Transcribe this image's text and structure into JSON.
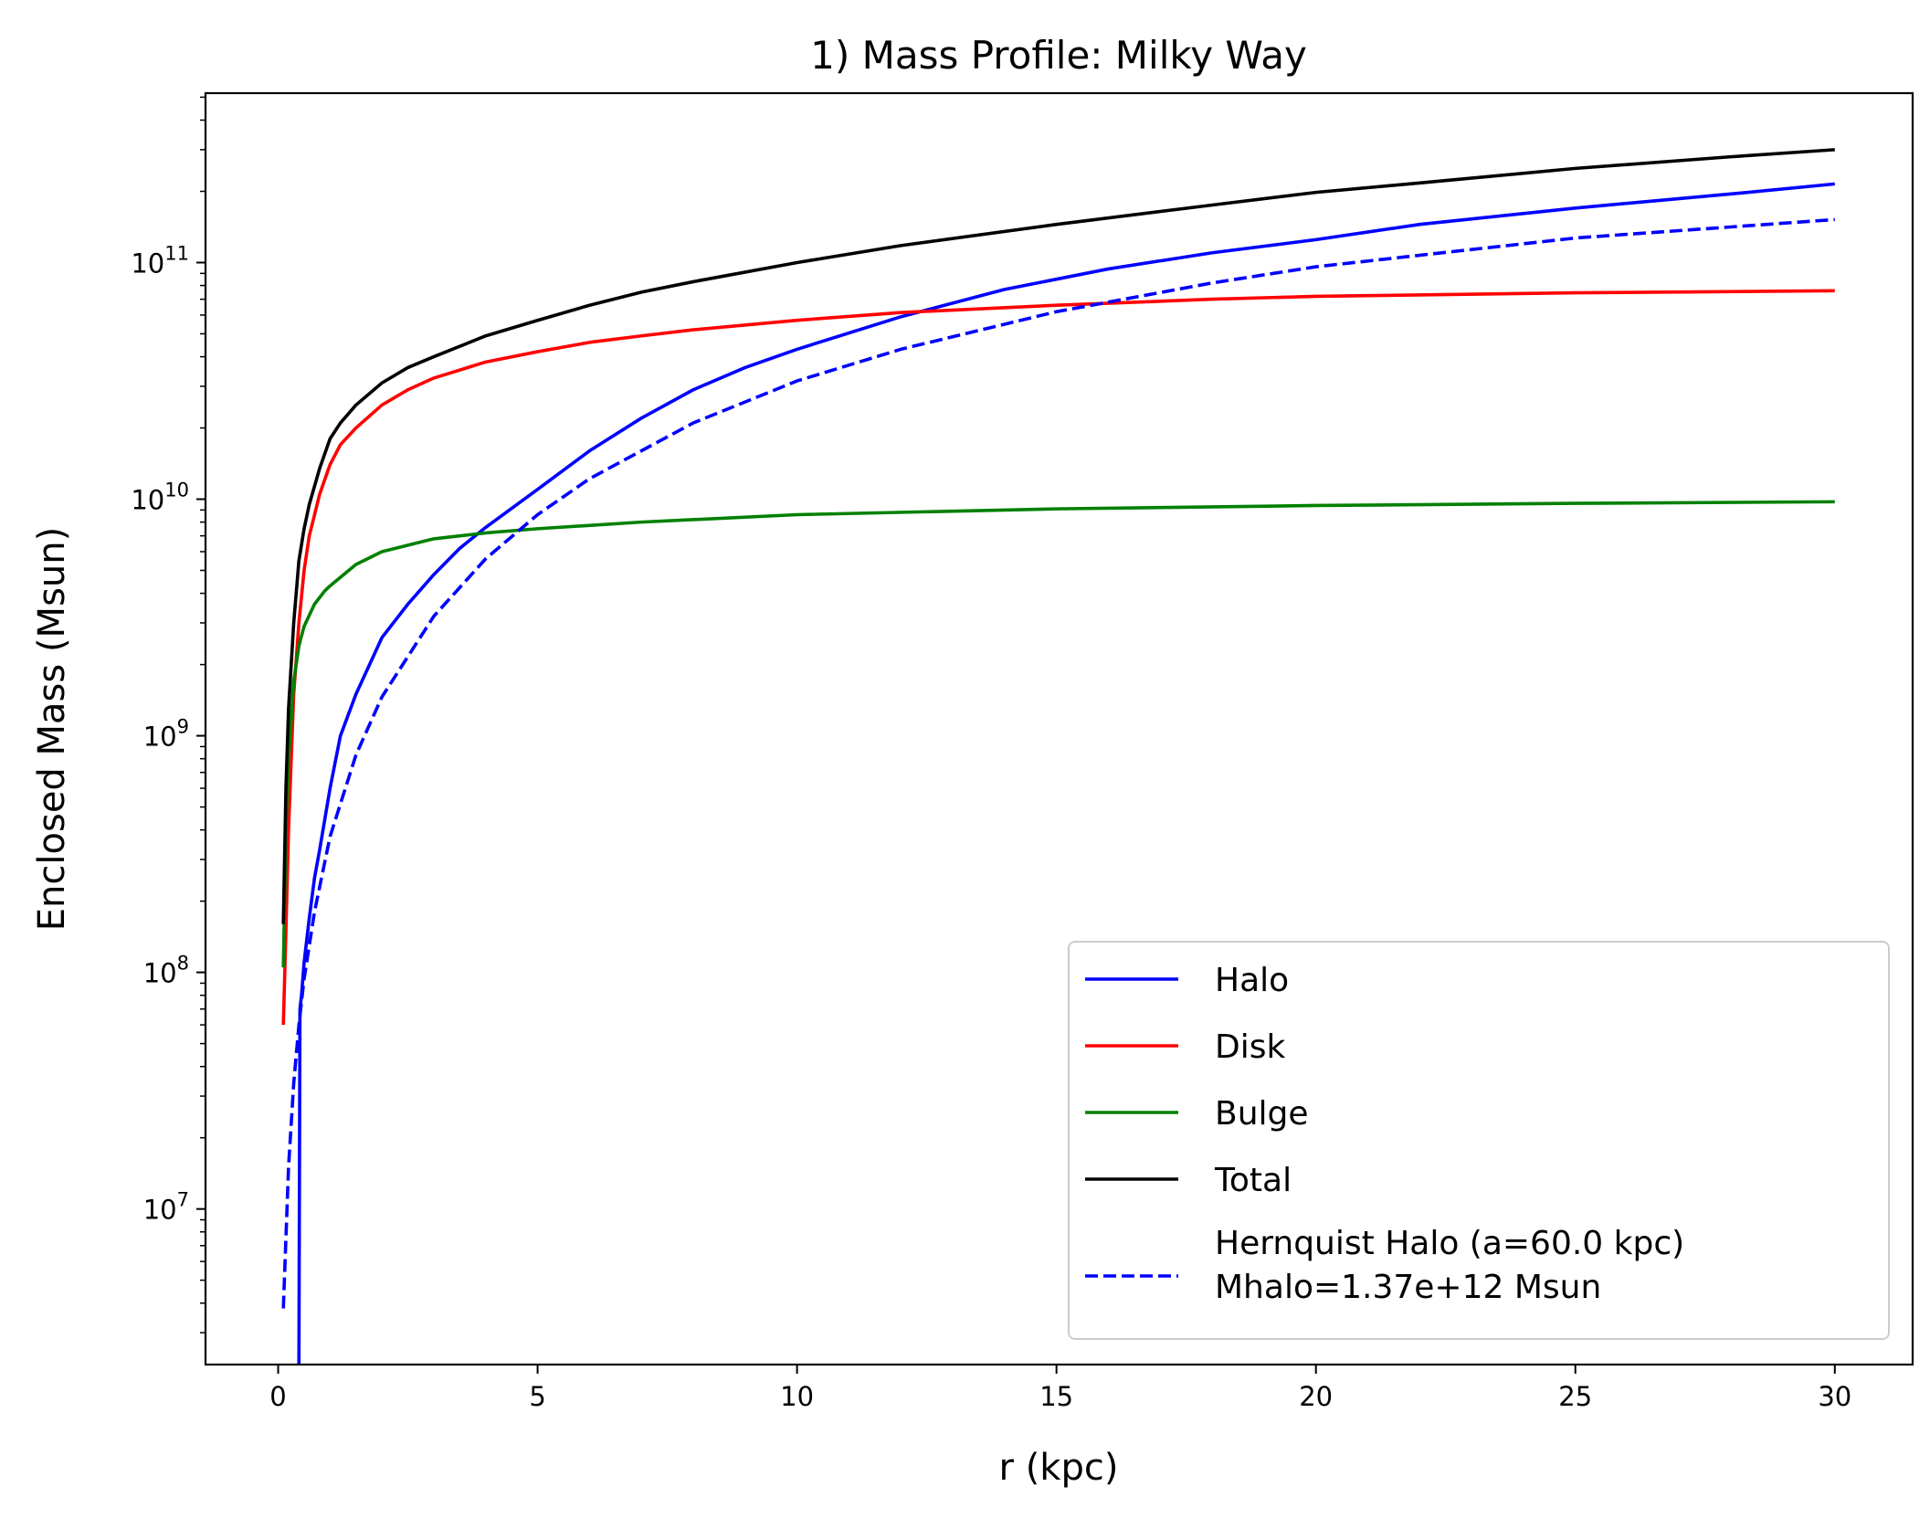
{
  "chart_data": {
    "type": "line",
    "title": "1) Mass Profile: Milky Way",
    "xlabel": "r (kpc)",
    "ylabel": "Enclosed Mass (Msun)",
    "x_scale": "linear",
    "y_scale": "log",
    "xlim": [
      -1.4,
      31.5
    ],
    "ylim": [
      2200000.0,
      520000000000.0
    ],
    "x_ticks": [
      0,
      5,
      10,
      15,
      20,
      25,
      30
    ],
    "y_ticks": [
      {
        "value": 10000000.0,
        "base": "10",
        "exp": "7"
      },
      {
        "value": 100000000.0,
        "base": "10",
        "exp": "8"
      },
      {
        "value": 1000000000.0,
        "base": "10",
        "exp": "9"
      },
      {
        "value": 10000000000.0,
        "base": "10",
        "exp": "10"
      },
      {
        "value": 100000000000.0,
        "base": "10",
        "exp": "11"
      }
    ],
    "grid": false,
    "legend_position": "lower-right",
    "series": [
      {
        "name": "Halo",
        "color": "#0000ff",
        "style": "solid",
        "x": [
          0.4,
          0.42,
          0.45,
          0.5,
          0.6,
          0.7,
          0.8,
          1.0,
          1.2,
          1.5,
          2.0,
          2.5,
          3.0,
          3.5,
          4.0,
          5.0,
          6.0,
          7.0,
          8.0,
          9.0,
          10.0,
          12.0,
          14.0,
          16.0,
          18.0,
          20.0,
          22.0,
          25.0,
          28.0,
          30.0
        ],
        "y": [
          2200000.0,
          70000000.0,
          80000000.0,
          110000000.0,
          170000000.0,
          250000000.0,
          330000000.0,
          600000000.0,
          1000000000.0,
          1500000000.0,
          2600000000.0,
          3600000000.0,
          4800000000.0,
          6200000000.0,
          7600000000.0,
          11000000000.0,
          16000000000.0,
          22000000000.0,
          29000000000.0,
          36000000000.0,
          43000000000.0,
          59000000000.0,
          77000000000.0,
          94000000000.0,
          110000000000.0,
          125000000000.0,
          145000000000.0,
          170000000000.0,
          195000000000.0,
          215000000000.0
        ]
      },
      {
        "name": "Disk",
        "color": "#ff0000",
        "style": "solid",
        "x": [
          0.1,
          0.15,
          0.2,
          0.3,
          0.4,
          0.5,
          0.6,
          0.8,
          1.0,
          1.2,
          1.5,
          2.0,
          2.5,
          3.0,
          4.0,
          5.0,
          6.0,
          7.0,
          8.0,
          10.0,
          12.0,
          15.0,
          18.0,
          20.0,
          25.0,
          30.0
        ],
        "y": [
          60000000.0,
          150000000.0,
          400000000.0,
          1500000000.0,
          3000000000.0,
          5000000000.0,
          7000000000.0,
          10500000000.0,
          14000000000.0,
          17000000000.0,
          20000000000.0,
          25000000000.0,
          29000000000.0,
          32500000000.0,
          38000000000.0,
          42000000000.0,
          46000000000.0,
          49000000000.0,
          52000000000.0,
          57000000000.0,
          61500000000.0,
          66000000000.0,
          70000000000.0,
          72000000000.0,
          74500000000.0,
          76000000000.0
        ]
      },
      {
        "name": "Bulge",
        "color": "#008000",
        "style": "solid",
        "x": [
          0.1,
          0.15,
          0.2,
          0.3,
          0.4,
          0.5,
          0.7,
          0.9,
          1.0,
          1.5,
          2.0,
          3.0,
          4.0,
          5.0,
          7.0,
          10.0,
          15.0,
          20.0,
          25.0,
          30.0
        ],
        "y": [
          105000000.0,
          400000000.0,
          800000000.0,
          1700000000.0,
          2400000000.0,
          2900000000.0,
          3600000000.0,
          4100000000.0,
          4300000000.0,
          5300000000.0,
          6000000000.0,
          6800000000.0,
          7200000000.0,
          7500000000.0,
          8000000000.0,
          8600000000.0,
          9100000000.0,
          9400000000.0,
          9600000000.0,
          9750000000.0
        ]
      },
      {
        "name": "Total",
        "color": "#000000",
        "style": "solid",
        "x": [
          0.1,
          0.15,
          0.2,
          0.3,
          0.4,
          0.5,
          0.6,
          0.8,
          1.0,
          1.2,
          1.5,
          2.0,
          2.5,
          3.0,
          4.0,
          5.0,
          6.0,
          7.0,
          8.0,
          10.0,
          12.0,
          15.0,
          18.0,
          20.0,
          22.0,
          25.0,
          28.0,
          30.0
        ],
        "y": [
          160000000.0,
          600000000.0,
          1300000000.0,
          3000000000.0,
          5500000000.0,
          7500000000.0,
          9500000000.0,
          13500000000.0,
          18000000000.0,
          21000000000.0,
          25000000000.0,
          31000000000.0,
          36000000000.0,
          40000000000.0,
          49000000000.0,
          57000000000.0,
          66000000000.0,
          75000000000.0,
          83000000000.0,
          100000000000.0,
          118000000000.0,
          145000000000.0,
          175000000000.0,
          198000000000.0,
          217000000000.0,
          250000000000.0,
          280000000000.0,
          300000000000.0
        ]
      },
      {
        "name": "Hernquist Halo (a=60.0 kpc)\nMhalo=1.37e+12 Msun",
        "color": "#0000ff",
        "style": "dashed",
        "x": [
          0.1,
          0.2,
          0.3,
          0.4,
          0.5,
          0.7,
          1.0,
          1.5,
          2.0,
          3.0,
          4.0,
          5.0,
          6.0,
          8.0,
          10.0,
          12.0,
          15.0,
          18.0,
          20.0,
          25.0,
          30.0
        ],
        "y": [
          3800000.0,
          15000000.0,
          34000000.0,
          60000000.0,
          94000000.0,
          180000000.0,
          375000000.0,
          830000000.0,
          1460000000.0,
          3200000000.0,
          5600000000.0,
          8600000000.0,
          12200000000.0,
          21000000000.0,
          31600000000.0,
          43000000000.0,
          62000000000.0,
          82000000000.0,
          96000000000.0,
          127000000000.0,
          152000000000.0
        ]
      }
    ],
    "legend": [
      {
        "label_lines": [
          "Halo"
        ]
      },
      {
        "label_lines": [
          "Disk"
        ]
      },
      {
        "label_lines": [
          "Bulge"
        ]
      },
      {
        "label_lines": [
          "Total"
        ]
      },
      {
        "label_lines": [
          "Hernquist Halo (a=60.0 kpc)",
          "Mhalo=1.37e+12 Msun"
        ]
      }
    ]
  }
}
